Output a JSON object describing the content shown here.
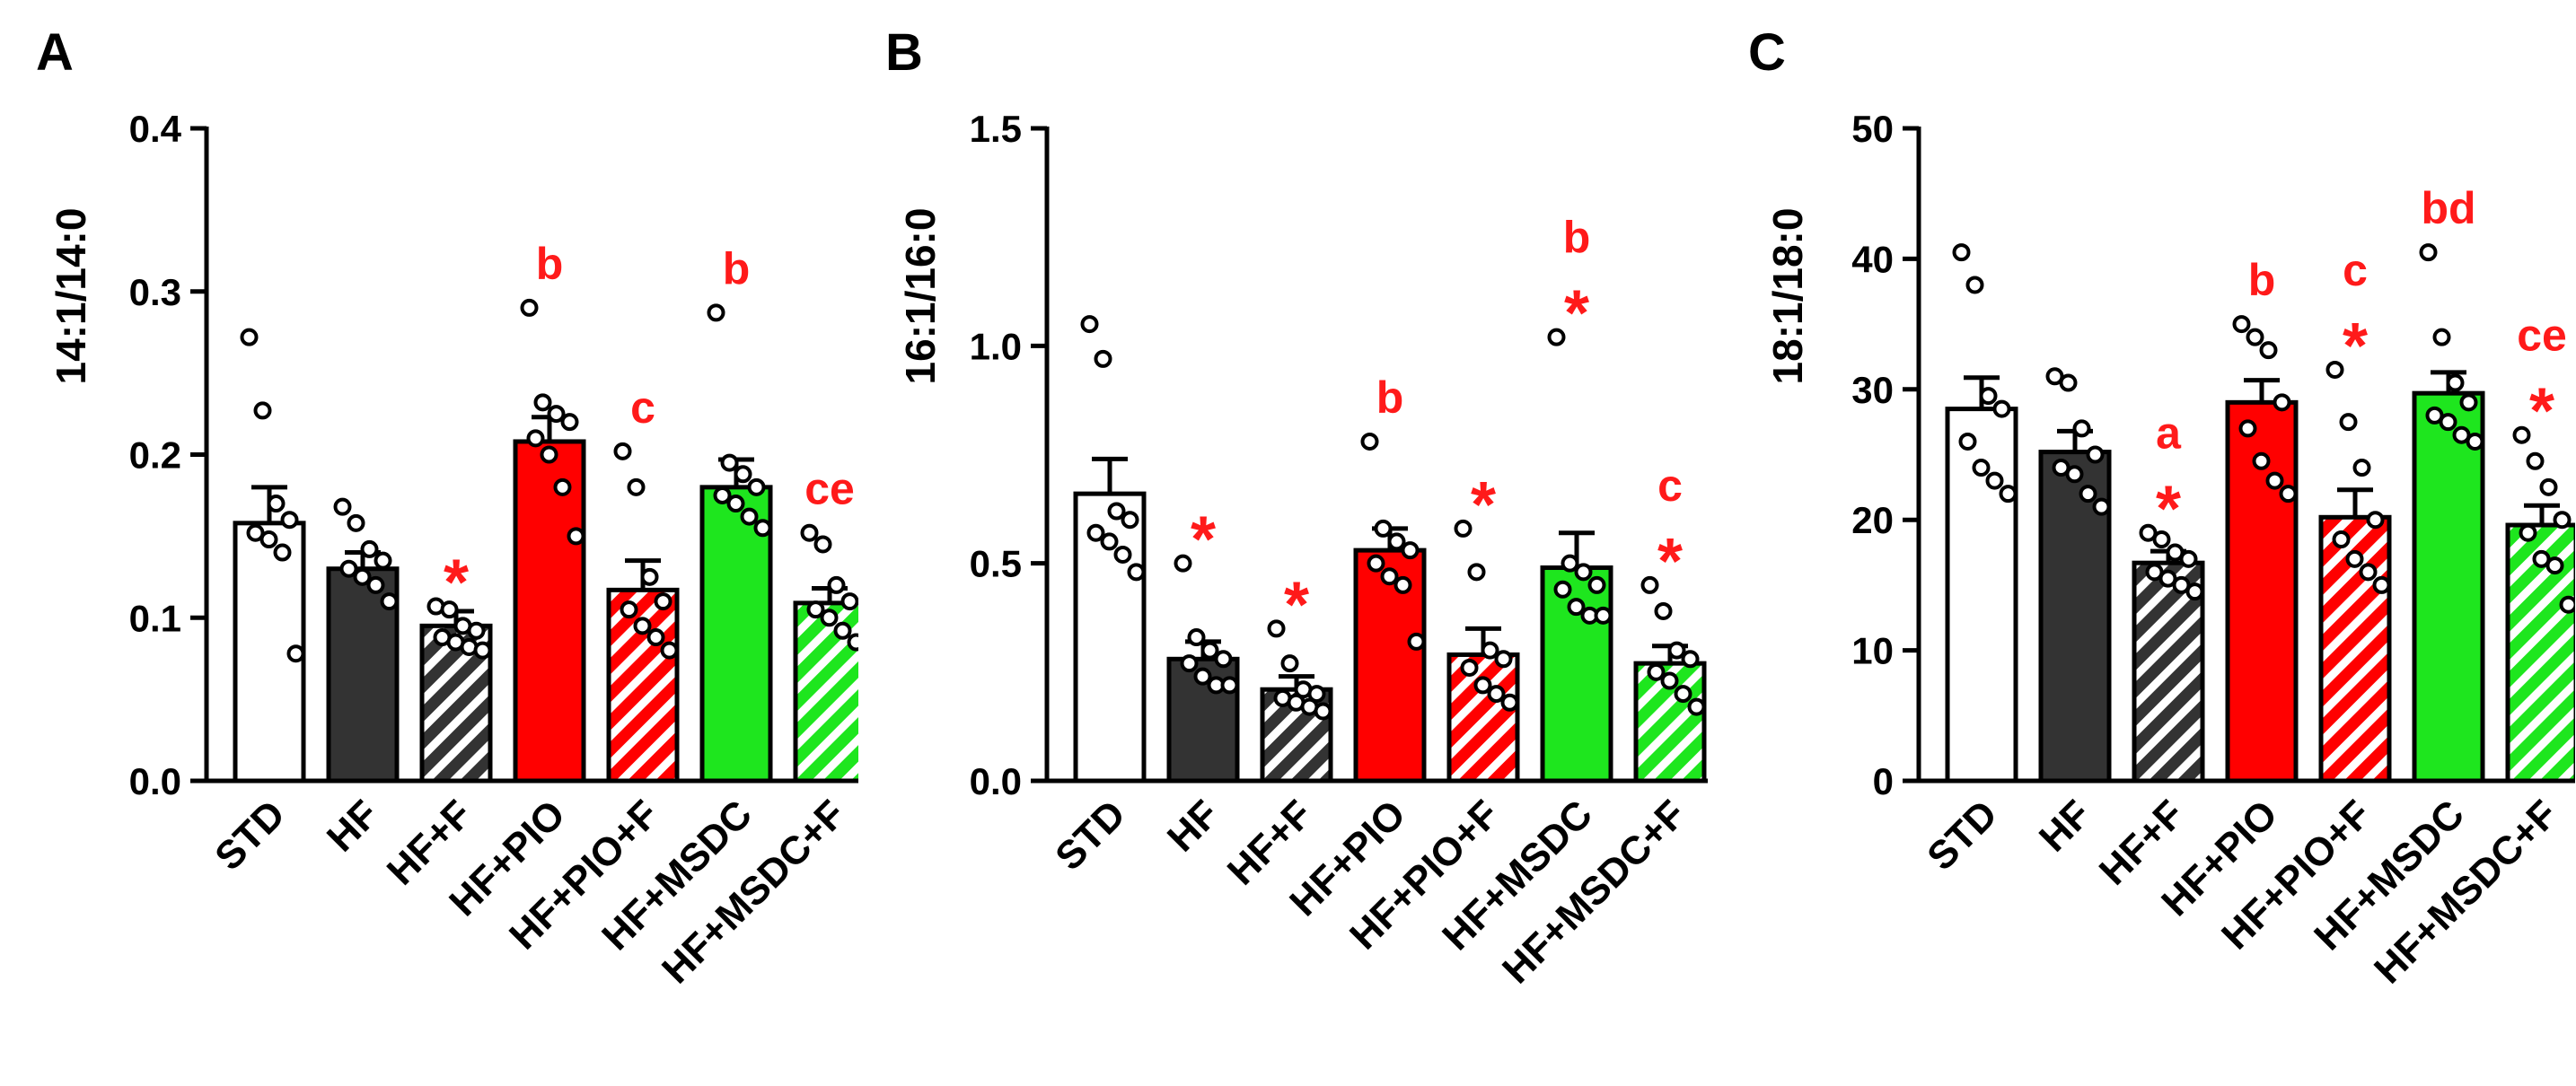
{
  "colors": {
    "std": "#ffffff",
    "hf": "#333333",
    "pio": "#ff0000",
    "msdc": "#1ee61e",
    "annotation": "#ff1a1a",
    "axis": "#000000"
  },
  "chart_data": [
    {
      "type": "bar",
      "panel": "A",
      "ylabel": "14:1/14:0",
      "ylim": [
        0,
        0.4
      ],
      "yticks": [
        "0.0",
        "0.1",
        "0.2",
        "0.3",
        "0.4"
      ],
      "yticks_values": [
        0,
        0.1,
        0.2,
        0.3,
        0.4
      ],
      "categories": [
        "STD",
        "HF",
        "HF+F",
        "HF+PIO",
        "HF+PIO+F",
        "HF+MSDC",
        "HF+MSDC+F"
      ],
      "values": [
        0.158,
        0.13,
        0.095,
        0.208,
        0.117,
        0.18,
        0.109
      ],
      "errors": [
        0.022,
        0.01,
        0.009,
        0.015,
        0.018,
        0.017,
        0.009
      ],
      "points": [
        [
          0.272,
          0.227,
          0.17,
          0.16,
          0.152,
          0.148,
          0.14,
          0.078
        ],
        [
          0.168,
          0.158,
          0.142,
          0.135,
          0.13,
          0.125,
          0.12,
          0.11
        ],
        [
          0.107,
          0.105,
          0.095,
          0.092,
          0.088,
          0.085,
          0.082,
          0.08
        ],
        [
          0.29,
          0.232,
          0.225,
          0.22,
          0.21,
          0.2,
          0.18,
          0.15
        ],
        [
          0.202,
          0.18,
          0.125,
          0.11,
          0.105,
          0.095,
          0.088,
          0.08
        ],
        [
          0.287,
          0.195,
          0.188,
          0.18,
          0.175,
          0.17,
          0.162,
          0.155
        ],
        [
          0.152,
          0.145,
          0.12,
          0.11,
          0.105,
          0.1,
          0.092,
          0.085
        ]
      ],
      "annotations": [
        {
          "category": "HF+F",
          "letters": "",
          "star": "*"
        },
        {
          "category": "HF+PIO",
          "letters": "b",
          "star": ""
        },
        {
          "category": "HF+PIO+F",
          "letters": "c",
          "star": ""
        },
        {
          "category": "HF+MSDC",
          "letters": "b",
          "star": ""
        },
        {
          "category": "HF+MSDC+F",
          "letters": "ce",
          "star": ""
        }
      ]
    },
    {
      "type": "bar",
      "panel": "B",
      "ylabel": "16:1/16:0",
      "ylim": [
        0,
        1.5
      ],
      "yticks": [
        "0.0",
        "0.5",
        "1.0",
        "1.5"
      ],
      "yticks_values": [
        0,
        0.5,
        1.0,
        1.5
      ],
      "categories": [
        "STD",
        "HF",
        "HF+F",
        "HF+PIO",
        "HF+PIO+F",
        "HF+MSDC",
        "HF+MSDC+F"
      ],
      "values": [
        0.66,
        0.28,
        0.21,
        0.53,
        0.29,
        0.49,
        0.27
      ],
      "errors": [
        0.08,
        0.04,
        0.03,
        0.05,
        0.06,
        0.08,
        0.04
      ],
      "points": [
        [
          1.05,
          0.97,
          0.62,
          0.6,
          0.57,
          0.55,
          0.52,
          0.48
        ],
        [
          0.5,
          0.33,
          0.3,
          0.28,
          0.27,
          0.24,
          0.22,
          0.22
        ],
        [
          0.35,
          0.27,
          0.21,
          0.2,
          0.19,
          0.18,
          0.17,
          0.16
        ],
        [
          0.78,
          0.58,
          0.55,
          0.53,
          0.5,
          0.47,
          0.45,
          0.32
        ],
        [
          0.58,
          0.48,
          0.3,
          0.28,
          0.26,
          0.22,
          0.2,
          0.18
        ],
        [
          1.02,
          0.5,
          0.48,
          0.45,
          0.44,
          0.4,
          0.38,
          0.38
        ],
        [
          0.45,
          0.39,
          0.3,
          0.28,
          0.25,
          0.23,
          0.2,
          0.17
        ]
      ],
      "annotations": [
        {
          "category": "HF",
          "letters": "",
          "star": "*"
        },
        {
          "category": "HF+F",
          "letters": "",
          "star": "*"
        },
        {
          "category": "HF+PIO",
          "letters": "b",
          "star": ""
        },
        {
          "category": "HF+PIO+F",
          "letters": "",
          "star": "*"
        },
        {
          "category": "HF+MSDC",
          "letters": "b",
          "star": "*"
        },
        {
          "category": "HF+MSDC+F",
          "letters": "c",
          "star": "*"
        }
      ]
    },
    {
      "type": "bar",
      "panel": "C",
      "ylabel": "18:1/18:0",
      "ylim": [
        0,
        50
      ],
      "yticks": [
        "0",
        "10",
        "20",
        "30",
        "40",
        "50"
      ],
      "yticks_values": [
        0,
        10,
        20,
        30,
        40,
        50
      ],
      "categories": [
        "STD",
        "HF",
        "HF+F",
        "HF+PIO",
        "HF+PIO+F",
        "HF+MSDC",
        "HF+MSDC+F"
      ],
      "values": [
        28.5,
        25.2,
        16.7,
        29.0,
        20.2,
        29.7,
        19.6
      ],
      "errors": [
        2.4,
        1.6,
        0.9,
        1.7,
        2.1,
        1.6,
        1.5
      ],
      "points": [
        [
          40.5,
          38.0,
          29.5,
          28.5,
          26.0,
          24.0,
          23.0,
          22.0
        ],
        [
          31.0,
          30.5,
          27.0,
          25.0,
          24.0,
          23.5,
          22.0,
          21.0
        ],
        [
          19.0,
          18.5,
          17.5,
          17.0,
          16.0,
          15.5,
          15.0,
          14.5
        ],
        [
          35.0,
          34.0,
          33.0,
          29.0,
          27.0,
          24.5,
          23.0,
          22.0
        ],
        [
          31.5,
          27.5,
          24.0,
          20.0,
          18.5,
          17.0,
          16.0,
          15.0
        ],
        [
          40.5,
          34.0,
          30.5,
          29.0,
          28.0,
          27.5,
          26.5,
          26.0
        ],
        [
          26.5,
          24.5,
          22.5,
          20.0,
          19.0,
          17.0,
          16.5,
          13.5
        ]
      ],
      "annotations": [
        {
          "category": "HF+F",
          "letters": "a",
          "star": "*"
        },
        {
          "category": "HF+PIO",
          "letters": "b",
          "star": ""
        },
        {
          "category": "HF+PIO+F",
          "letters": "c",
          "star": "*"
        },
        {
          "category": "HF+MSDC",
          "letters": "bd",
          "star": ""
        },
        {
          "category": "HF+MSDC+F",
          "letters": "ce",
          "star": "*"
        }
      ]
    }
  ]
}
